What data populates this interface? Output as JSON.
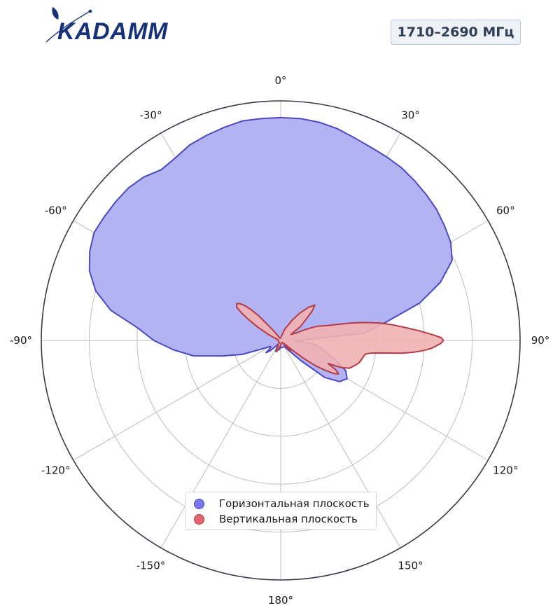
{
  "brand": {
    "logo_text": "KADAMM"
  },
  "band_label": "1710–2690 МГц",
  "colors": {
    "horizontal_fill": "#b3b3f4",
    "horizontal_line": "#4b48c0",
    "vertical_fill": "#f1b1b4",
    "vertical_line": "#b43a44",
    "legend_horizontal": "#7a76ec",
    "legend_vertical": "#e2676e",
    "grid": "#bdbdbd",
    "frame": "#3a3a48"
  },
  "chart_data": {
    "type": "polar",
    "angle_unit": "deg",
    "zero_location": "top",
    "direction": "clockwise",
    "angle_ticks": [
      0,
      30,
      60,
      90,
      120,
      150,
      180,
      -150,
      -120,
      -90,
      -60,
      -30
    ],
    "angle_tick_labels": [
      "0°",
      "30°",
      "60°",
      "90°",
      "120°",
      "150°",
      "180°",
      "-150°",
      "-120°",
      "-90°",
      "-60°",
      "-30°"
    ],
    "radial_ticks": [
      0.2,
      0.4,
      0.6,
      0.8
    ],
    "radial_tick_labels_visible": false,
    "rlim": [
      0,
      1
    ],
    "grid": true,
    "legend_position": "bottom-center",
    "series": [
      {
        "name": "Горизонтальная плоскость",
        "angle": [
          0,
          5,
          10,
          15,
          20,
          25,
          30,
          35,
          40,
          45,
          50,
          55,
          60,
          65,
          70,
          75,
          80,
          85,
          88,
          92,
          96,
          100,
          105,
          110,
          115,
          120,
          125,
          130,
          135,
          140,
          150,
          160,
          170,
          180,
          190,
          200,
          205,
          210,
          215,
          220,
          225,
          230,
          235,
          240,
          245,
          250,
          255,
          260,
          265,
          270,
          275,
          280,
          285,
          290,
          295,
          300,
          305,
          310,
          315,
          320,
          325,
          330,
          335,
          340,
          345,
          350,
          355,
          360
        ],
        "r": [
          0.93,
          0.93,
          0.925,
          0.915,
          0.9,
          0.89,
          0.885,
          0.88,
          0.87,
          0.86,
          0.85,
          0.835,
          0.82,
          0.79,
          0.71,
          0.6,
          0.45,
          0.35,
          0.11,
          0.06,
          0.13,
          0.17,
          0.2,
          0.25,
          0.3,
          0.32,
          0.3,
          0.24,
          0.12,
          0.06,
          0.03,
          0.03,
          0.03,
          0.03,
          0.04,
          0.03,
          0.05,
          0.03,
          0.02,
          0.03,
          0.06,
          0.08,
          0.05,
          0.05,
          0.08,
          0.17,
          0.25,
          0.37,
          0.45,
          0.53,
          0.6,
          0.72,
          0.8,
          0.85,
          0.88,
          0.9,
          0.9,
          0.9,
          0.9,
          0.89,
          0.87,
          0.88,
          0.9,
          0.91,
          0.92,
          0.93,
          0.93,
          0.93
        ]
      },
      {
        "name": "Вертикальная плоскость",
        "angle": [
          0,
          10,
          20,
          30,
          35,
          40,
          44,
          47,
          50,
          55,
          60,
          64,
          66,
          68,
          69,
          70,
          72,
          74,
          76,
          78,
          80,
          82,
          84,
          86,
          88,
          89,
          90,
          91,
          92,
          93,
          94,
          95,
          96,
          97,
          98,
          99,
          100,
          101,
          102,
          104,
          106,
          108,
          110,
          112,
          114,
          115,
          116,
          118,
          120,
          122,
          124,
          126,
          128,
          130,
          132,
          134,
          135,
          137,
          140,
          145,
          150,
          160,
          170,
          180,
          190,
          200,
          205,
          210,
          215,
          220,
          225,
          230,
          235,
          240,
          250,
          260,
          270,
          280,
          290,
          295,
          300,
          303,
          305,
          307,
          310,
          312,
          314,
          316,
          318,
          320,
          325,
          330,
          340,
          350,
          360
        ],
        "r": [
          0.01,
          0.02,
          0.05,
          0.1,
          0.14,
          0.18,
          0.205,
          0.18,
          0.14,
          0.1,
          0.05,
          0.07,
          0.11,
          0.15,
          0.165,
          0.175,
          0.2,
          0.24,
          0.3,
          0.36,
          0.42,
          0.47,
          0.52,
          0.58,
          0.64,
          0.67,
          0.68,
          0.67,
          0.65,
          0.63,
          0.6,
          0.56,
          0.51,
          0.43,
          0.38,
          0.36,
          0.355,
          0.353,
          0.35,
          0.345,
          0.34,
          0.33,
          0.32,
          0.31,
          0.28,
          0.25,
          0.22,
          0.26,
          0.28,
          0.26,
          0.22,
          0.18,
          0.12,
          0.06,
          0.02,
          0.04,
          0.06,
          0.04,
          0.02,
          0.01,
          0.01,
          0.01,
          0.01,
          0.02,
          0.03,
          0.05,
          0.04,
          0.02,
          0.01,
          0.01,
          0.01,
          0.01,
          0.01,
          0.01,
          0.01,
          0.01,
          0.01,
          0.01,
          0.02,
          0.05,
          0.11,
          0.16,
          0.2,
          0.23,
          0.24,
          0.23,
          0.21,
          0.18,
          0.14,
          0.09,
          0.04,
          0.02,
          0.01,
          0.01,
          0.01
        ]
      }
    ]
  }
}
